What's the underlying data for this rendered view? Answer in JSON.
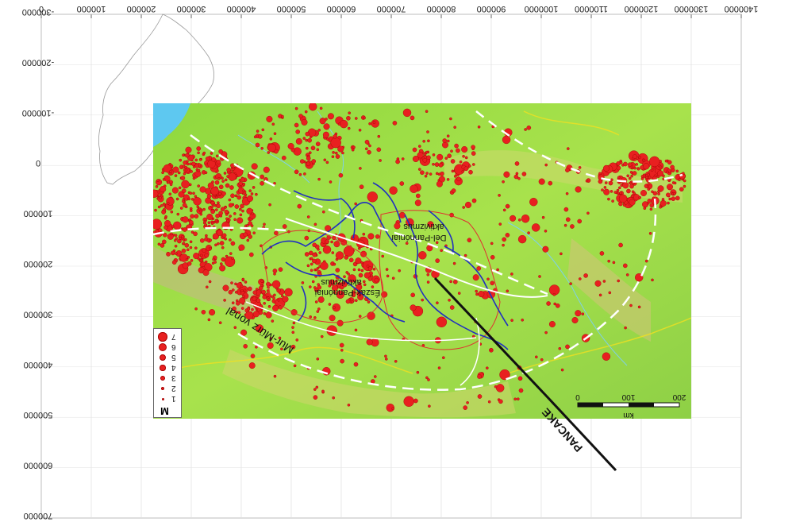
{
  "chart_data": {
    "type": "scatter",
    "x_ticks": [
      "0",
      "100000",
      "200000",
      "300000",
      "400000",
      "500000",
      "600000",
      "700000",
      "800000",
      "900000",
      "1000000",
      "1100000",
      "1200000",
      "1300000",
      "1400000"
    ],
    "y_ticks": [
      "-300000",
      "-200000",
      "-100000",
      "0",
      "100000",
      "200000",
      "300000",
      "400000",
      "500000",
      "600000",
      "700000"
    ],
    "xlim": [
      0,
      1400000
    ],
    "ylim": [
      -300000,
      700000
    ],
    "labels": {
      "region_1": "Del-Pannóniai",
      "region_1b": "aktivizmus",
      "region_2": "Észak-Pannóniai",
      "region_2b": "aktivizmus",
      "fault": "Mur-Mürz vonal",
      "profile": "PANCAKE"
    },
    "legend": {
      "title": "M",
      "magnitudes": [
        "1",
        "2",
        "3",
        "4",
        "5",
        "6",
        "7"
      ]
    },
    "scalebar": {
      "ticks": [
        "0",
        "100",
        "200"
      ],
      "unit": "km"
    },
    "colors": {
      "land": "#9ee04a",
      "sea": "#5ec8f0",
      "quake": "#e82020",
      "quake_edge": "#a00000",
      "river": "#2030c0",
      "border": "#e03030",
      "arc": "#ffffff"
    }
  }
}
